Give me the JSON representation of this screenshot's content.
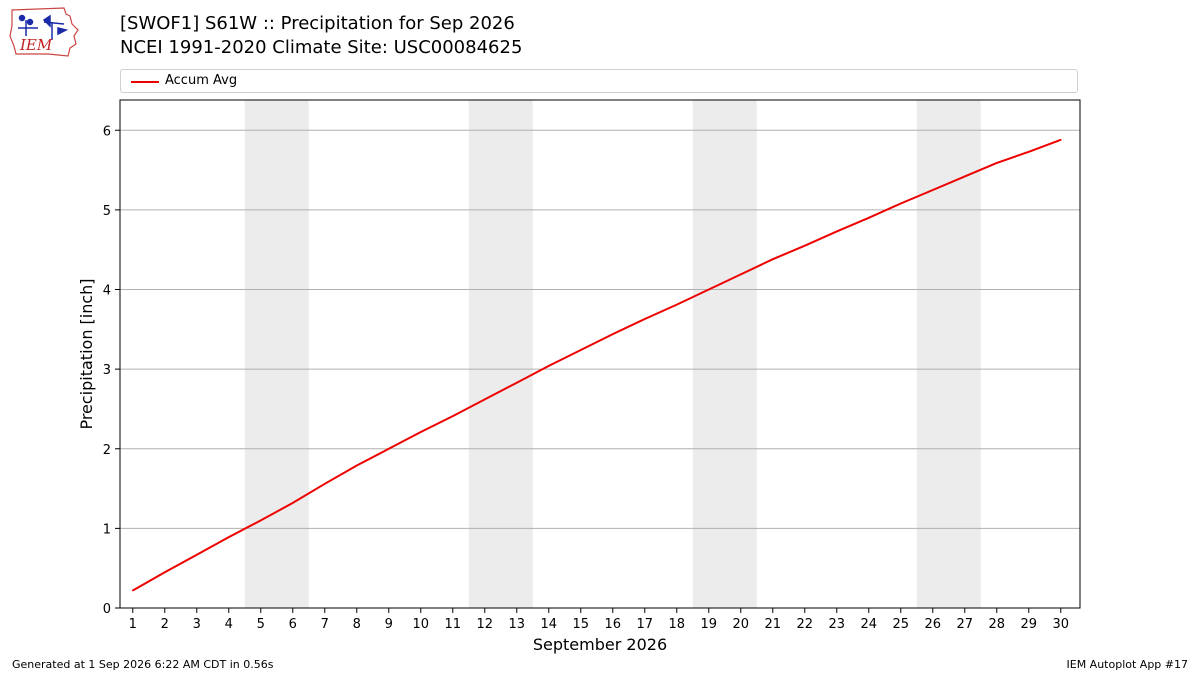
{
  "header": {
    "logo_text": "IEM",
    "title_line1": "[SWOF1] S61W :: Precipitation for Sep 2026",
    "title_line2": "NCEI 1991-2020 Climate Site: USC00084625"
  },
  "legend": {
    "entries": [
      {
        "label": "Accum Avg",
        "color": "#ee0000"
      }
    ]
  },
  "footer": {
    "left": "Generated at 1 Sep 2026 6:22 AM CDT in 0.56s",
    "right": "IEM Autoplot App #17"
  },
  "chart_data": {
    "type": "line",
    "xlabel": "September 2026",
    "ylabel": "Precipitation [inch]",
    "xlim": [
      0.6,
      30.6
    ],
    "ylim": [
      0,
      6.38
    ],
    "yticks": [
      0,
      1,
      2,
      3,
      4,
      5,
      6
    ],
    "categories": [
      "1",
      "2",
      "3",
      "4",
      "5",
      "6",
      "7",
      "8",
      "9",
      "10",
      "11",
      "12",
      "13",
      "14",
      "15",
      "16",
      "17",
      "18",
      "19",
      "20",
      "21",
      "22",
      "23",
      "24",
      "25",
      "26",
      "27",
      "28",
      "29",
      "30"
    ],
    "weekend_bands": [
      [
        4.5,
        6.5
      ],
      [
        11.5,
        13.5
      ],
      [
        18.5,
        20.5
      ],
      [
        25.5,
        27.5
      ]
    ],
    "grid": "horizontal",
    "legend_position": "top",
    "series": [
      {
        "name": "Accum Avg",
        "color": "#ee0000",
        "x": [
          1,
          2,
          3,
          4,
          5,
          6,
          7,
          8,
          9,
          10,
          11,
          12,
          13,
          14,
          15,
          16,
          17,
          18,
          19,
          20,
          21,
          22,
          23,
          24,
          25,
          26,
          27,
          28,
          29,
          30
        ],
        "values": [
          0.22,
          0.45,
          0.67,
          0.89,
          1.1,
          1.32,
          1.56,
          1.79,
          2.0,
          2.21,
          2.41,
          2.62,
          2.83,
          3.04,
          3.24,
          3.44,
          3.63,
          3.81,
          4.0,
          4.19,
          4.38,
          4.55,
          4.73,
          4.9,
          5.08,
          5.25,
          5.42,
          5.59,
          5.73,
          5.88
        ]
      }
    ]
  }
}
